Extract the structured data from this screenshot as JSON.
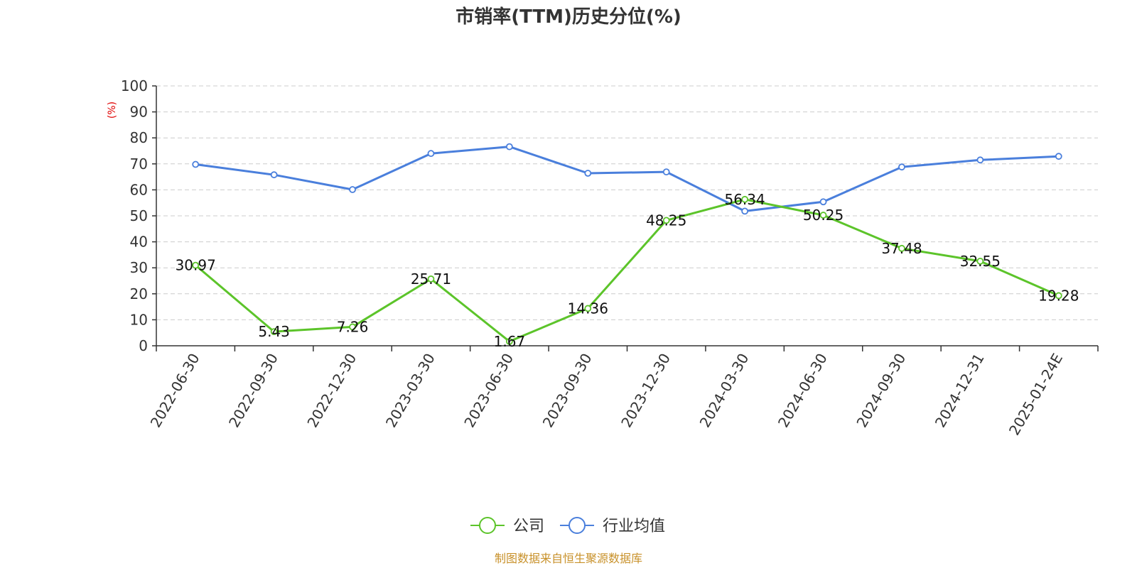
{
  "chart_data": {
    "type": "line",
    "title": "市销率(TTM)历史分位(%)",
    "ylabel": "(%)",
    "ylim": [
      0,
      100
    ],
    "yticks": [
      0,
      10,
      20,
      30,
      40,
      50,
      60,
      70,
      80,
      90,
      100
    ],
    "grid": "dashed horizontal",
    "categories": [
      "2022-06-30",
      "2022-09-30",
      "2022-12-30",
      "2023-03-30",
      "2023-06-30",
      "2023-09-30",
      "2023-12-30",
      "2024-03-30",
      "2024-06-30",
      "2024-09-30",
      "2024-12-31",
      "2025-01-24E"
    ],
    "series": [
      {
        "name": "公司",
        "color": "#5cc42a",
        "show_labels": true,
        "values": [
          30.97,
          5.43,
          7.26,
          25.71,
          1.67,
          14.36,
          48.25,
          56.34,
          50.25,
          37.48,
          32.55,
          19.28
        ]
      },
      {
        "name": "行业均值",
        "color": "#4a7fdc",
        "show_labels": false,
        "values": [
          69.8,
          65.8,
          60.1,
          74.0,
          76.6,
          66.4,
          66.9,
          51.8,
          55.4,
          68.8,
          71.5,
          72.9
        ]
      }
    ],
    "legend_position": "bottom-center",
    "unit_label_color": "#e00000"
  },
  "footer": {
    "source": "制图数据来自恒生聚源数据库",
    "color": "#c8912a"
  }
}
